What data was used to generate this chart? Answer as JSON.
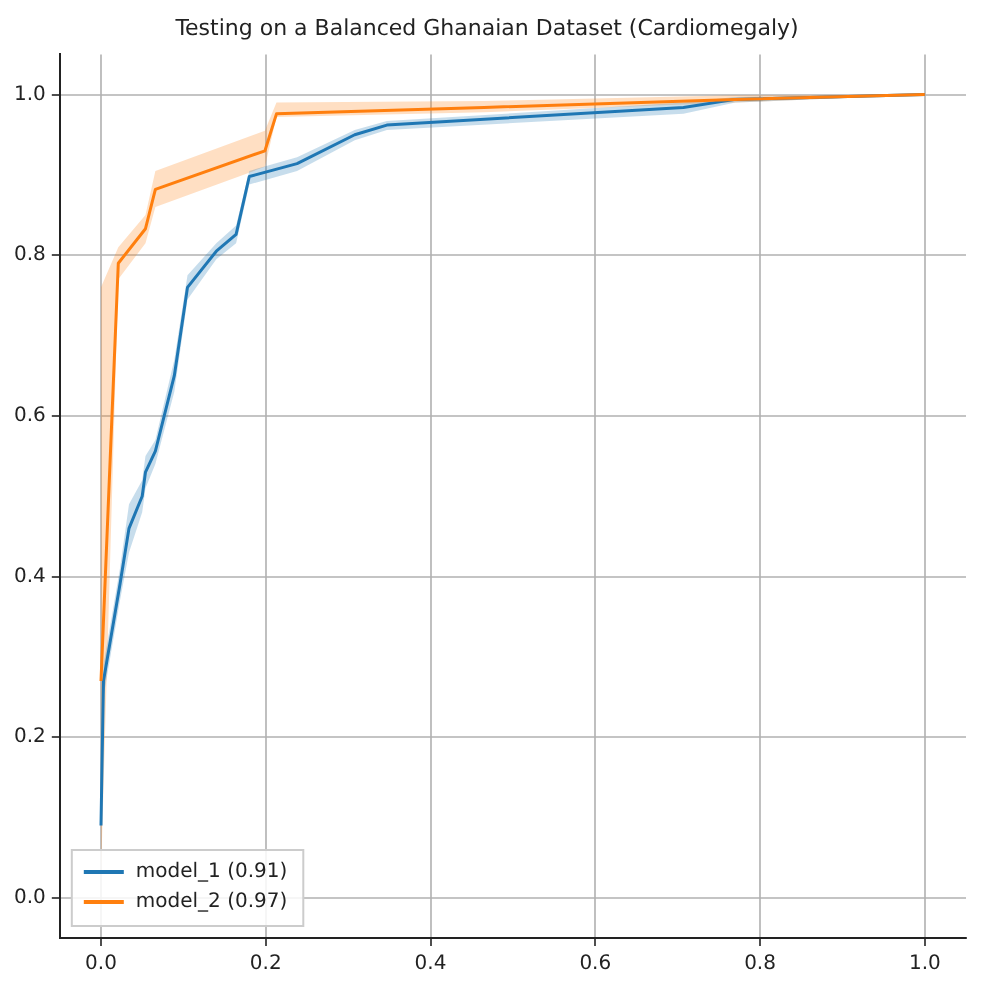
{
  "chart_data": {
    "type": "line",
    "title": "Testing on a Balanced Ghanaian Dataset (Cardiomegaly)",
    "xlim": [
      -0.05,
      1.05
    ],
    "ylim": [
      -0.05,
      1.05
    ],
    "xticks": [
      {
        "value": 0,
        "label": "0.0"
      },
      0.2,
      0.4,
      0.6,
      0.8,
      {
        "value": 1,
        "label": "1.0"
      }
    ],
    "yticks": [
      {
        "value": 0,
        "label": "0.0"
      },
      0.2,
      0.4,
      0.6,
      0.8,
      {
        "value": 1,
        "label": "1.0"
      }
    ],
    "grid": true,
    "legend": "bottom left",
    "marker": "none",
    "line_style": "solid",
    "series": [
      {
        "name": "model_1 (0.91)",
        "color": "#1f77b4",
        "x": [
          0,
          0.003,
          0.023,
          0.034,
          0.05,
          0.054,
          0.066,
          0.089,
          0.105,
          0.14,
          0.164,
          0.18,
          0.238,
          0.308,
          0.347,
          0.707,
          0.77,
          1.0
        ],
        "values": [
          0.09,
          0.27,
          0.39,
          0.46,
          0.5,
          0.53,
          0.556,
          0.65,
          0.76,
          0.805,
          0.826,
          0.898,
          0.914,
          0.95,
          0.962,
          0.984,
          0.994,
          1.0
        ],
        "lower": [
          0.09,
          0.25,
          0.37,
          0.43,
          0.48,
          0.51,
          0.54,
          0.63,
          0.745,
          0.795,
          0.815,
          0.888,
          0.905,
          0.943,
          0.956,
          0.976,
          0.99,
          1.0
        ],
        "upper": [
          0.09,
          0.29,
          0.41,
          0.49,
          0.52,
          0.55,
          0.57,
          0.67,
          0.775,
          0.815,
          0.837,
          0.905,
          0.922,
          0.956,
          0.967,
          0.99,
          0.997,
          1.0
        ]
      },
      {
        "name": "model_2 (0.97)",
        "color": "#ff7f0e",
        "x": [
          0,
          0.021,
          0.054,
          0.066,
          0.199,
          0.213,
          0.465,
          0.77,
          1.0
        ],
        "values": [
          0.27,
          0.79,
          0.833,
          0.882,
          0.93,
          0.976,
          0.984,
          0.994,
          1.0
        ],
        "lower": [
          0.03,
          0.77,
          0.815,
          0.86,
          0.91,
          0.972,
          0.978,
          0.99,
          1.0
        ],
        "upper": [
          0.76,
          0.81,
          0.85,
          0.905,
          0.955,
          0.99,
          0.992,
          0.999,
          1.0
        ]
      }
    ]
  }
}
